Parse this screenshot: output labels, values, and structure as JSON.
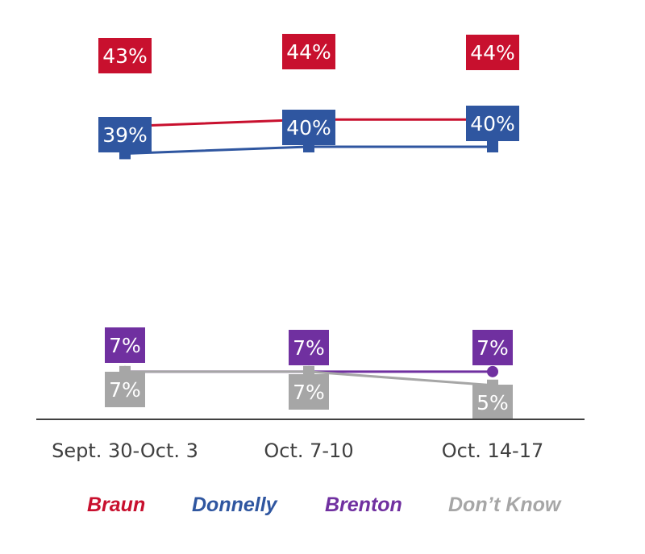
{
  "chart_data": {
    "type": "line",
    "categories": [
      "Sept. 30-Oct. 3",
      "Oct. 7-10",
      "Oct. 14-17"
    ],
    "ylim": [
      0,
      50
    ],
    "grid": false,
    "legend_position": "bottom",
    "series": [
      {
        "name": "Braun",
        "color": "#c8102e",
        "values": [
          43,
          44,
          44
        ],
        "labels": [
          "43%",
          "44%",
          "44%"
        ],
        "label_position": "above"
      },
      {
        "name": "Donnelly",
        "color": "#2f56a0",
        "values": [
          39,
          40,
          40
        ],
        "labels": [
          "39%",
          "40%",
          "40%"
        ],
        "label_position": "below"
      },
      {
        "name": "Brenton",
        "color": "#7030a0",
        "values": [
          7,
          7,
          7
        ],
        "labels": [
          "7%",
          "7%",
          "7%"
        ],
        "label_position": "above"
      },
      {
        "name": "Don’t Know",
        "color": "#a6a6a6",
        "values": [
          7,
          7,
          5
        ],
        "labels": [
          "7%",
          "7%",
          "5%"
        ],
        "label_position": "below"
      }
    ]
  }
}
